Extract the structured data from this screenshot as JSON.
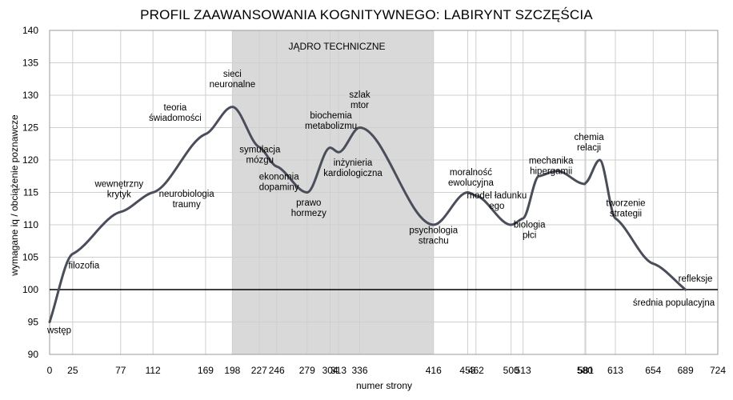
{
  "chart_data": {
    "type": "line",
    "title": "PROFIL ZAAWANSOWANIA KOGNITYWNEGO: LABIRYNT SZCZĘŚCIA",
    "xlabel": "numer strony",
    "ylabel": "wymagane iq / obciążenie poznawcze",
    "xlim": [
      0,
      724
    ],
    "ylim": [
      90,
      140
    ],
    "grid": true,
    "x_ticks": [
      0,
      25,
      77,
      112,
      169,
      198,
      227,
      246,
      279,
      304,
      313,
      336,
      416,
      453,
      462,
      500,
      513,
      580,
      581,
      613,
      654,
      689,
      724
    ],
    "y_ticks": [
      90,
      95,
      100,
      105,
      110,
      115,
      120,
      125,
      130,
      135,
      140
    ],
    "colors": {
      "line": "#4a4d5a",
      "band": "#d9d9d9",
      "reference": "#000000",
      "grid": "#cfcfcf"
    },
    "band": {
      "x_start": 198,
      "x_end": 416,
      "label": "JĄDRO TECHNICZNE"
    },
    "reference_line": {
      "y": 100,
      "label": "średnia populacyjna"
    },
    "series": [
      {
        "values": [
          [
            0,
            95
          ],
          [
            25,
            105.5
          ],
          [
            77,
            112
          ],
          [
            112,
            115
          ],
          [
            169,
            124
          ],
          [
            198,
            128.2
          ],
          [
            227,
            122
          ],
          [
            246,
            119
          ],
          [
            279,
            115
          ],
          [
            304,
            121.9
          ],
          [
            313,
            121.2
          ],
          [
            336,
            125
          ],
          [
            416,
            110
          ],
          [
            453,
            115
          ],
          [
            462,
            114.5
          ],
          [
            500,
            110
          ],
          [
            513,
            111
          ],
          [
            530,
            117.5
          ],
          [
            550,
            118.3
          ],
          [
            580,
            116.3
          ],
          [
            581,
            116.5
          ],
          [
            596,
            120
          ],
          [
            613,
            111
          ],
          [
            654,
            104
          ],
          [
            689,
            100
          ]
        ]
      }
    ],
    "annotations": [
      {
        "text": "wstęp",
        "x": 0,
        "y": 95
      },
      {
        "text": "filozofia",
        "x": 25,
        "y": 105.5
      },
      {
        "text": "wewnętrzny krytyk",
        "x": 77,
        "y": 112
      },
      {
        "text": "neurobiologia traumy",
        "x": 112,
        "y": 115
      },
      {
        "text": "teoria świadomości",
        "x": 169,
        "y": 124
      },
      {
        "text": "sieci neuronalne",
        "x": 198,
        "y": 128.2
      },
      {
        "text": "symulacja mózgu",
        "x": 227,
        "y": 122
      },
      {
        "text": "ekonomia dopaminy",
        "x": 246,
        "y": 119
      },
      {
        "text": "prawo hormezy",
        "x": 279,
        "y": 115
      },
      {
        "text": "biochemia metabolizmu",
        "x": 304,
        "y": 121.9
      },
      {
        "text": "inżynieria kardiologiczna",
        "x": 313,
        "y": 121.2
      },
      {
        "text": "szlak mtor",
        "x": 336,
        "y": 125
      },
      {
        "text": "psychologia strachu",
        "x": 416,
        "y": 110
      },
      {
        "text": "moralność ewolucyjna",
        "x": 453,
        "y": 115
      },
      {
        "text": "model ładunku ego",
        "x": 462,
        "y": 114.5
      },
      {
        "text": "biologia płci",
        "x": 500,
        "y": 110
      },
      {
        "text": "mechanika hipergamii",
        "x": 513,
        "y": 111
      },
      {
        "text": "chemia relacji",
        "x": 581,
        "y": 116.5
      },
      {
        "text": "tworzenie strategii",
        "x": 613,
        "y": 111
      },
      {
        "text": "refleksje",
        "x": 689,
        "y": 100
      }
    ]
  }
}
